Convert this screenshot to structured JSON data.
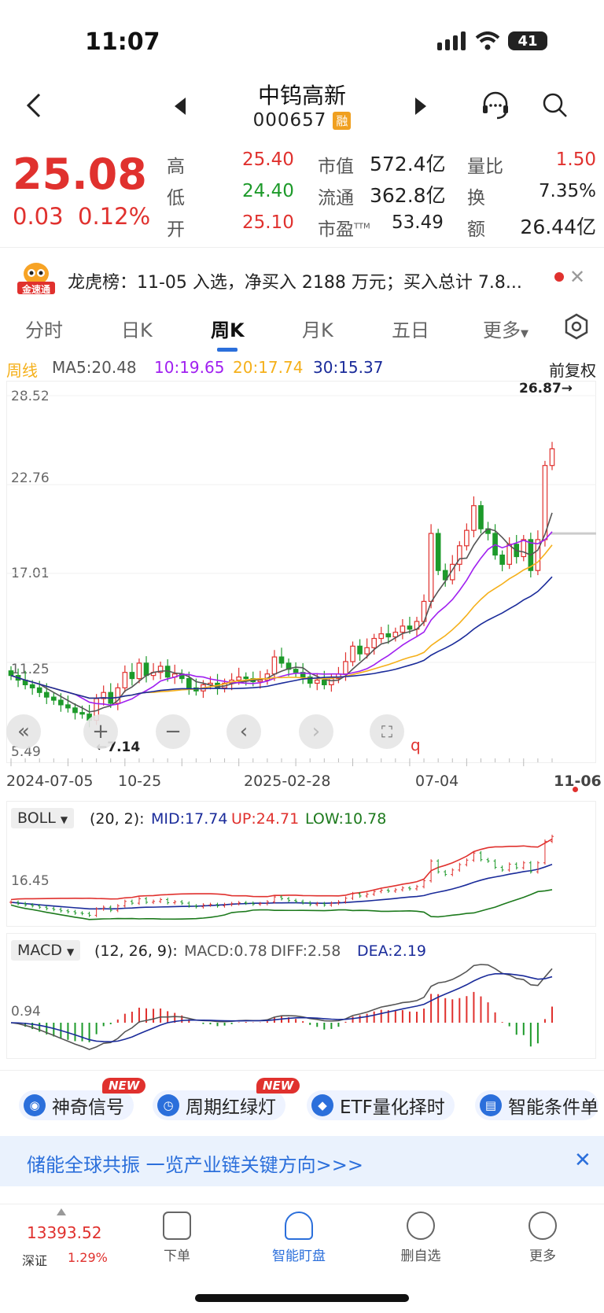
{
  "status": {
    "time": "11:07",
    "battery": "41"
  },
  "header": {
    "name": "中钨高新",
    "code": "000657",
    "badge": "融"
  },
  "quote": {
    "price": "25.08",
    "change": "0.03",
    "change_pct": "0.12%",
    "high_label": "高",
    "high": "25.40",
    "low_label": "低",
    "low": "24.40",
    "open_label": "开",
    "open": "25.10",
    "mcap_label": "市值",
    "mcap": "572.4亿",
    "float_label": "流通",
    "float": "362.8亿",
    "pe_label": "市盈",
    "pe_sup": "TTM",
    "pe": "53.49",
    "vr_label": "量比",
    "vr": "1.50",
    "turn_label": "换",
    "turn": "7.35%",
    "amt_label": "额",
    "amt": "26.44亿"
  },
  "news": {
    "logo_text": "金速通",
    "text": "龙虎榜：11-05 入选，净买入 2188 万元；买入总计 7.8..."
  },
  "tabs": [
    "分时",
    "日K",
    "周K",
    "月K",
    "五日",
    "更多"
  ],
  "active_tab": 2,
  "ma_legend": {
    "period": "周线",
    "ma5": "MA5:20.48",
    "ma10": "10:19.65",
    "ma20": "20:17.74",
    "ma30": "30:15.37",
    "adjust": "前复权"
  },
  "colors": {
    "up": "#e0312e",
    "down": "#1d9a2a",
    "ma5": "#555555",
    "ma10": "#a020f0",
    "ma20": "#f5b01a",
    "ma30": "#1a2b9a"
  },
  "chart_data": [
    {
      "type": "candlestick",
      "period": "weekly",
      "y_ticks": [
        "28.52",
        "22.76",
        "17.01",
        "11.25",
        "5.49"
      ],
      "ylim": [
        5.49,
        28.52
      ],
      "x_ticks": [
        "2024-07-05",
        "10-25",
        "2025-02-28",
        "07-04",
        "11-06"
      ],
      "annotations": {
        "max": "26.87→",
        "min": "←7.14",
        "marker": "q"
      },
      "closes": [
        10.4,
        10.1,
        9.8,
        9.6,
        9.3,
        9.0,
        8.8,
        8.5,
        8.3,
        8.0,
        7.9,
        7.5,
        8.9,
        9.3,
        8.6,
        9.6,
        10.6,
        10.2,
        11.2,
        10.4,
        10.6,
        11.0,
        10.3,
        10.5,
        10.2,
        9.6,
        9.4,
        9.8,
        9.9,
        9.6,
        9.9,
        10.1,
        10.3,
        10.2,
        10.0,
        10.1,
        10.5,
        11.6,
        11.2,
        10.8,
        10.6,
        10.3,
        9.9,
        10.1,
        9.8,
        10.2,
        10.5,
        11.3,
        12.3,
        11.8,
        12.2,
        12.8,
        13.1,
        12.9,
        13.2,
        13.6,
        13.4,
        13.9,
        15.2,
        19.6,
        17.2,
        16.6,
        17.6,
        18.8,
        19.8,
        21.4,
        19.9,
        19.6,
        18.2,
        17.6,
        18.9,
        18.1,
        19.2,
        17.2,
        19.2,
        24.0,
        25.08
      ]
    },
    {
      "type": "line",
      "name": "BOLL",
      "params": "(20, 2):",
      "mid": "MID:17.74",
      "up": "UP:24.71",
      "low": "LOW:10.78",
      "y_tick": "16.45"
    },
    {
      "type": "bar",
      "name": "MACD",
      "params": "(12, 26, 9):",
      "macd": "MACD:0.78",
      "diff": "DIFF:2.58",
      "dea": "DEA:2.19",
      "y_tick": "0.94"
    }
  ],
  "features": [
    {
      "label": "神奇信号",
      "new": "NEW"
    },
    {
      "label": "周期红绿灯",
      "new": "NEW"
    },
    {
      "label": "ETF量化择时"
    },
    {
      "label": "智能条件单"
    }
  ],
  "banner": {
    "text": "储能全球共振 一览产业链关键方向>>>"
  },
  "bottom": {
    "index_value": "13393.52",
    "index_name": "深证",
    "index_pct": "1.29%",
    "items": [
      "下单",
      "智能盯盘",
      "删自选",
      "更多"
    ]
  }
}
